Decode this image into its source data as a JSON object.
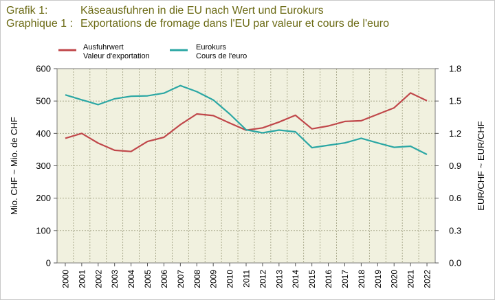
{
  "title": {
    "line1_label": "Grafik 1:",
    "line1_text": "Käseausfuhren in die EU nach Wert und Eurokurs",
    "line2_label": "Graphique 1 :",
    "line2_text": "Exportations de fromage dans l'EU par valeur et cours de l'euro"
  },
  "colors": {
    "export": "#c0474a",
    "euro": "#2ba7a4",
    "plot_bg": "#f1f1df",
    "title": "#6b6a14"
  },
  "chart_data": {
    "type": "line",
    "x": [
      "2000",
      "2001",
      "2002",
      "2003",
      "2004",
      "2005",
      "2006",
      "2007",
      "2008",
      "2009",
      "2010",
      "2011",
      "2012",
      "2013",
      "2014",
      "2015",
      "2016",
      "2017",
      "2018",
      "2019",
      "2020",
      "2021",
      "2022"
    ],
    "series": [
      {
        "name": "Ausfuhrwert",
        "name2": "Valeur d'exportation",
        "axis": "left",
        "values": [
          385,
          400,
          370,
          348,
          344,
          375,
          388,
          427,
          460,
          455,
          432,
          410,
          417,
          435,
          456,
          414,
          423,
          437,
          439,
          459,
          479,
          525,
          501
        ]
      },
      {
        "name": "Eurokurs",
        "name2": "Cours de l'euro",
        "axis": "right",
        "values": [
          1.557,
          1.511,
          1.467,
          1.521,
          1.544,
          1.548,
          1.573,
          1.643,
          1.587,
          1.51,
          1.38,
          1.233,
          1.205,
          1.231,
          1.215,
          1.068,
          1.09,
          1.112,
          1.155,
          1.112,
          1.071,
          1.081,
          1.005
        ]
      }
    ],
    "y_left": {
      "label": "Mio. CHF  ~  Mio. de CHF",
      "ylim": [
        0,
        600
      ],
      "ticks": [
        0,
        100,
        200,
        300,
        400,
        500,
        600
      ]
    },
    "y_right": {
      "label": "EUR/CHF  ~  EUR/CHF",
      "ylim": [
        0,
        1.8
      ],
      "ticks": [
        "0.0",
        "0.3",
        "0.6",
        "0.9",
        "1.2",
        "1.5",
        "1.8"
      ]
    },
    "grid": true,
    "legend_position": "top-left"
  }
}
